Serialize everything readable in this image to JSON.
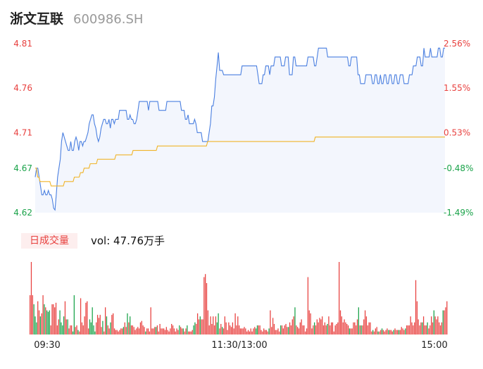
{
  "header": {
    "name": "浙文互联",
    "code": "600986.SH"
  },
  "volume_panel": {
    "badge": "日成交量",
    "vol_label": "vol: 47.76万手"
  },
  "colors": {
    "up": "#e8413f",
    "down": "#1aa34a",
    "neutral": "#999999",
    "price_line": "#4a7fe0",
    "avg_line": "#f0b429"
  },
  "chart_data": [
    {
      "type": "line",
      "y_ticks": [
        "4.81",
        "4.76",
        "4.71",
        "4.67",
        "4.62"
      ],
      "y_tick_values": [
        4.81,
        4.76,
        4.71,
        4.67,
        4.62
      ],
      "right_ticks": [
        "2.56%",
        "1.55%",
        "0.53%",
        "-0.48%",
        "-1.49%"
      ],
      "ylim": [
        4.62,
        4.81
      ],
      "prev_close": 4.69,
      "series": [
        {
          "name": "price",
          "values": [
            4.66,
            4.67,
            4.67,
            4.66,
            4.65,
            4.64,
            4.64,
            4.645,
            4.64,
            4.64,
            4.645,
            4.64,
            4.64,
            4.635,
            4.625,
            4.623,
            4.64,
            4.66,
            4.67,
            4.68,
            4.7,
            4.71,
            4.705,
            4.7,
            4.695,
            4.69,
            4.69,
            4.7,
            4.69,
            4.69,
            4.7,
            4.705,
            4.7,
            4.69,
            4.7,
            4.7,
            4.695,
            4.7,
            4.7,
            4.705,
            4.71,
            4.72,
            4.725,
            4.73,
            4.73,
            4.72,
            4.715,
            4.705,
            4.7,
            4.705,
            4.715,
            4.72,
            4.725,
            4.725,
            4.72,
            4.72,
            4.725,
            4.715,
            4.725,
            4.725,
            4.72,
            4.725,
            4.725,
            4.725,
            4.735,
            4.735,
            4.735,
            4.735,
            4.735,
            4.735,
            4.725,
            4.725,
            4.73,
            4.725,
            4.725,
            4.72,
            4.72,
            4.725,
            4.735,
            4.745,
            4.745,
            4.745,
            4.745,
            4.745,
            4.745,
            4.745,
            4.735,
            4.745,
            4.745,
            4.745,
            4.745,
            4.745,
            4.745,
            4.745,
            4.735,
            4.735,
            4.735,
            4.735,
            4.735,
            4.735,
            4.745,
            4.745,
            4.745,
            4.745,
            4.745,
            4.745,
            4.745,
            4.745,
            4.745,
            4.745,
            4.745,
            4.735,
            4.735,
            4.735,
            4.725,
            4.725,
            4.73,
            4.72,
            4.72,
            4.72,
            4.72,
            4.725,
            4.72,
            4.71,
            4.71,
            4.71,
            4.71,
            4.7,
            4.7,
            4.7,
            4.7,
            4.7,
            4.71,
            4.72,
            4.74,
            4.74,
            4.75,
            4.77,
            4.785,
            4.8,
            4.78,
            4.78,
            4.78,
            4.775,
            4.775,
            4.775,
            4.775,
            4.775,
            4.775,
            4.775,
            4.775,
            4.775,
            4.775,
            4.775,
            4.775,
            4.775,
            4.775,
            4.785,
            4.785,
            4.785,
            4.785,
            4.785,
            4.785,
            4.785,
            4.785,
            4.785,
            4.785,
            4.785,
            4.785,
            4.775,
            4.765,
            4.765,
            4.765,
            4.775,
            4.775,
            4.785,
            4.785,
            4.785,
            4.775,
            4.785,
            4.785,
            4.785,
            4.795,
            4.795,
            4.795,
            4.795,
            4.795,
            4.785,
            4.785,
            4.785,
            4.795,
            4.795,
            4.795,
            4.775,
            4.775,
            4.775,
            4.795,
            4.795,
            4.785,
            4.785,
            4.785,
            4.785,
            4.785,
            4.785,
            4.785,
            4.785,
            4.785,
            4.795,
            4.795,
            4.795,
            4.795,
            4.795,
            4.785,
            4.785,
            4.795,
            4.805,
            4.805,
            4.805,
            4.805,
            4.805,
            4.805,
            4.805,
            4.795,
            4.795,
            4.795,
            4.795,
            4.795,
            4.795,
            4.795,
            4.795,
            4.795,
            4.795,
            4.795,
            4.795,
            4.795,
            4.795,
            4.795,
            4.795,
            4.785,
            4.785,
            4.795,
            4.795,
            4.795,
            4.795,
            4.795,
            4.775,
            4.775,
            4.765,
            4.765,
            4.765,
            4.765,
            4.775,
            4.775,
            4.775,
            4.775,
            4.775,
            4.765,
            4.765,
            4.775,
            4.775,
            4.765,
            4.765,
            4.775,
            4.765,
            4.765,
            4.775,
            4.775,
            4.765,
            4.765,
            4.775,
            4.775,
            4.765,
            4.765,
            4.775,
            4.775,
            4.765,
            4.765,
            4.775,
            4.775,
            4.775,
            4.765,
            4.765,
            4.765,
            4.765,
            4.775,
            4.775,
            4.775,
            4.785,
            4.785,
            4.785,
            4.795,
            4.795,
            4.795,
            4.785,
            4.785,
            4.805,
            4.795,
            4.795,
            4.795,
            4.795,
            4.805,
            4.795,
            4.795,
            4.795,
            4.795,
            4.795,
            4.805,
            4.805,
            4.795,
            4.795,
            4.805,
            4.805
          ]
        },
        {
          "name": "average",
          "values": [
            4.67,
            4.67,
            4.66,
            4.66,
            4.655,
            4.655,
            4.655,
            4.655,
            4.655,
            4.655,
            4.655,
            4.655,
            4.655,
            4.65,
            4.65,
            4.65,
            4.65,
            4.65,
            4.65,
            4.65,
            4.65,
            4.65,
            4.65,
            4.65,
            4.655,
            4.655,
            4.655,
            4.655,
            4.655,
            4.655,
            4.655,
            4.655,
            4.66,
            4.66,
            4.66,
            4.66,
            4.66,
            4.665,
            4.665,
            4.665,
            4.67,
            4.67,
            4.67,
            4.67,
            4.67,
            4.675,
            4.675,
            4.675,
            4.675,
            4.675,
            4.675,
            4.68,
            4.68,
            4.68,
            4.68,
            4.68,
            4.68,
            4.68,
            4.68,
            4.68,
            4.68,
            4.68,
            4.68,
            4.68,
            4.68,
            4.68,
            4.685,
            4.685,
            4.685,
            4.685,
            4.685,
            4.685,
            4.685,
            4.685,
            4.685,
            4.685,
            4.685,
            4.685,
            4.685,
            4.685,
            4.69,
            4.69,
            4.69,
            4.69,
            4.69,
            4.69,
            4.69,
            4.69,
            4.69,
            4.69,
            4.69,
            4.69,
            4.69,
            4.69,
            4.69,
            4.69,
            4.69,
            4.69,
            4.69,
            4.69,
            4.695,
            4.695,
            4.695,
            4.695,
            4.695,
            4.695,
            4.695,
            4.695,
            4.695,
            4.695,
            4.695,
            4.695,
            4.695,
            4.695,
            4.695,
            4.695,
            4.695,
            4.695,
            4.695,
            4.695,
            4.695,
            4.695,
            4.695,
            4.695,
            4.695,
            4.695,
            4.695,
            4.695,
            4.695,
            4.695,
            4.695,
            4.695,
            4.695,
            4.695,
            4.695,
            4.695,
            4.695,
            4.695,
            4.695,
            4.695,
            4.695,
            4.7,
            4.7,
            4.7,
            4.7,
            4.7,
            4.7,
            4.7,
            4.7,
            4.7,
            4.7,
            4.7,
            4.7,
            4.7,
            4.7,
            4.7,
            4.7,
            4.7,
            4.7,
            4.7,
            4.7,
            4.7,
            4.7,
            4.7,
            4.7,
            4.7,
            4.7,
            4.7,
            4.7,
            4.7,
            4.7,
            4.7,
            4.7,
            4.7,
            4.7,
            4.7,
            4.7,
            4.7,
            4.7,
            4.7,
            4.7,
            4.7,
            4.7,
            4.7,
            4.7,
            4.7,
            4.7,
            4.7,
            4.7,
            4.7,
            4.7,
            4.7,
            4.7,
            4.7,
            4.7,
            4.7,
            4.7,
            4.7,
            4.7,
            4.7,
            4.7,
            4.7,
            4.7,
            4.7,
            4.7,
            4.7,
            4.7,
            4.7,
            4.7,
            4.7,
            4.7,
            4.7,
            4.7,
            4.7,
            4.7,
            4.7,
            4.7,
            4.7,
            4.7,
            4.7,
            4.7,
            4.7,
            4.7,
            4.7,
            4.7,
            4.7,
            4.7,
            4.7,
            4.7,
            4.705,
            4.705,
            4.705,
            4.705,
            4.705,
            4.705,
            4.705,
            4.705,
            4.705,
            4.705,
            4.705,
            4.705,
            4.705,
            4.705,
            4.705,
            4.705,
            4.705,
            4.705,
            4.705,
            4.705,
            4.705,
            4.705,
            4.705,
            4.705,
            4.705,
            4.705,
            4.705,
            4.705,
            4.705,
            4.705,
            4.705,
            4.705,
            4.705,
            4.705,
            4.705,
            4.705,
            4.705,
            4.705,
            4.705,
            4.705,
            4.705,
            4.705,
            4.705,
            4.705,
            4.705,
            4.705,
            4.705,
            4.705,
            4.705,
            4.705,
            4.705,
            4.705,
            4.705,
            4.705,
            4.705,
            4.705,
            4.705,
            4.705,
            4.705,
            4.705,
            4.705,
            4.705,
            4.705,
            4.705,
            4.705,
            4.705,
            4.705,
            4.705,
            4.705,
            4.705,
            4.705,
            4.705,
            4.705,
            4.705,
            4.705,
            4.705,
            4.705,
            4.705,
            4.705,
            4.705,
            4.705,
            4.705,
            4.705,
            4.705,
            4.705,
            4.705,
            4.705,
            4.705,
            4.705,
            4.705,
            4.705,
            4.705,
            4.705,
            4.705,
            4.705,
            4.705,
            4.705,
            4.705,
            4.705,
            4.705,
            4.705,
            4.705,
            4.705,
            4.705,
            4.705,
            4.705,
            4.705
          ]
        }
      ]
    },
    {
      "type": "bar",
      "x_ticks": [
        "09:30",
        "11:30/13:00",
        "15:00"
      ],
      "values": [
        26,
        48,
        26,
        20,
        12,
        8,
        22,
        16,
        12,
        14,
        26,
        20,
        18,
        16,
        15,
        16,
        6,
        20,
        20,
        18,
        21,
        6,
        10,
        16,
        8,
        6,
        12,
        22,
        10,
        10,
        4,
        6,
        6,
        2,
        26,
        5,
        6,
        3,
        2,
        24,
        8,
        6,
        12,
        21,
        22,
        4,
        10,
        8,
        18,
        6,
        2,
        8,
        13,
        11,
        13,
        5,
        9,
        2,
        18,
        12,
        6,
        4,
        8,
        13,
        14,
        4,
        3,
        3,
        2,
        3,
        4,
        4,
        5,
        8,
        5,
        14,
        8,
        12,
        6,
        6,
        5,
        3,
        4,
        5,
        4,
        8,
        9,
        6,
        5,
        2,
        4,
        4,
        2,
        18,
        4,
        4,
        5,
        5,
        6,
        2,
        7,
        4,
        4,
        4,
        3,
        5,
        3,
        2,
        4,
        7,
        6,
        4,
        2,
        4,
        3,
        6,
        5,
        4,
        4,
        2,
        4,
        6,
        2,
        2,
        2,
        3,
        6,
        8,
        7,
        14,
        10,
        12,
        10,
        10,
        38,
        40,
        34,
        16,
        6,
        12,
        7,
        12,
        6,
        12,
        8,
        14,
        4,
        7,
        5,
        4,
        12,
        8,
        3,
        8,
        6,
        5,
        8,
        4,
        14,
        6,
        12,
        6,
        4,
        4,
        4,
        5,
        4,
        2,
        3,
        2,
        4,
        2,
        4,
        5,
        4,
        6,
        6,
        6,
        3,
        2,
        4,
        3,
        3,
        2,
        4,
        16,
        5,
        11,
        7,
        3,
        3,
        4,
        2,
        6,
        6,
        4,
        6,
        7,
        5,
        5,
        8,
        6,
        10,
        12,
        18,
        6,
        5,
        4,
        8,
        10,
        6,
        6,
        2,
        4,
        38,
        16,
        14,
        4,
        6,
        8,
        6,
        10,
        8,
        11,
        10,
        12,
        6,
        8,
        6,
        7,
        12,
        6,
        8,
        8,
        2,
        6,
        7,
        8,
        48,
        16,
        12,
        8,
        10,
        8,
        7,
        6,
        4,
        4,
        4,
        8,
        8,
        6,
        10,
        18,
        6,
        6,
        6,
        10,
        16,
        12,
        6,
        8,
        8,
        2,
        3,
        2,
        4,
        5,
        2,
        2,
        3,
        4,
        3,
        2,
        3,
        4,
        3,
        3,
        3,
        2,
        3,
        4,
        3,
        3,
        3,
        3,
        5,
        4,
        3,
        4,
        6,
        6,
        6,
        12,
        8,
        6,
        8,
        36,
        22,
        10,
        6,
        8,
        8,
        12,
        6,
        6,
        8,
        4,
        6,
        12,
        8,
        16,
        12,
        10,
        12,
        8,
        6,
        8,
        16,
        16,
        18,
        22
      ]
    }
  ]
}
